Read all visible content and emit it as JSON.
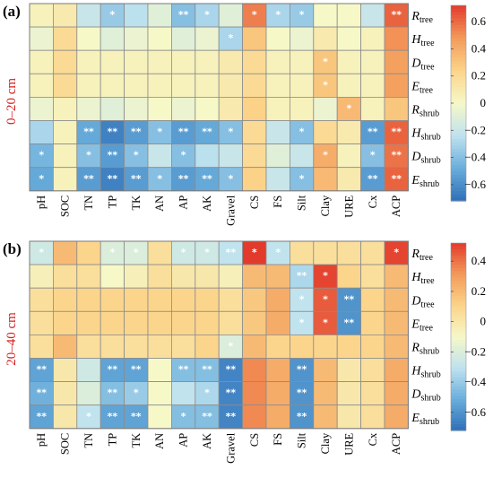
{
  "chart_data": [
    {
      "type": "heatmap",
      "panel": "(a)",
      "depth": "0–20 cm",
      "x_labels": [
        "pH",
        "SOC",
        "TN",
        "TP",
        "TK",
        "AN",
        "AP",
        "AK",
        "Gravel",
        "CS",
        "FS",
        "Silt",
        "Clay",
        "URE",
        "Cx",
        "ACP"
      ],
      "y_labels": [
        {
          "base": "R",
          "sub": "tree"
        },
        {
          "base": "H",
          "sub": "tree"
        },
        {
          "base": "D",
          "sub": "tree"
        },
        {
          "base": "E",
          "sub": "tree"
        },
        {
          "base": "R",
          "sub": "shrub"
        },
        {
          "base": "H",
          "sub": "shrub"
        },
        {
          "base": "D",
          "sub": "shrub"
        },
        {
          "base": "E",
          "sub": "shrub"
        }
      ],
      "values": [
        [
          0.05,
          0.1,
          -0.2,
          -0.35,
          -0.25,
          -0.1,
          -0.4,
          -0.3,
          -0.1,
          0.55,
          -0.3,
          -0.35,
          0.0,
          0.0,
          -0.2,
          0.62
        ],
        [
          -0.05,
          0.2,
          0.0,
          -0.1,
          -0.05,
          0.0,
          -0.1,
          -0.05,
          -0.3,
          0.3,
          0.0,
          -0.05,
          0.1,
          0.0,
          0.05,
          0.5
        ],
        [
          0.05,
          0.2,
          0.05,
          0.05,
          0.05,
          0.05,
          0.05,
          0.05,
          0.1,
          0.2,
          0.05,
          0.05,
          0.3,
          0.05,
          0.05,
          0.45
        ],
        [
          0.05,
          0.2,
          0.05,
          0.05,
          0.05,
          0.05,
          0.05,
          0.05,
          0.1,
          0.2,
          0.05,
          0.05,
          0.3,
          0.05,
          0.05,
          0.45
        ],
        [
          -0.05,
          0.05,
          -0.05,
          -0.1,
          -0.05,
          0.0,
          -0.05,
          0.0,
          0.1,
          0.25,
          0.05,
          0.05,
          -0.05,
          0.35,
          0.05,
          0.3
        ],
        [
          -0.3,
          0.05,
          -0.5,
          -0.65,
          -0.55,
          -0.4,
          -0.55,
          -0.5,
          -0.4,
          0.2,
          -0.2,
          -0.4,
          0.2,
          0.1,
          -0.55,
          0.62
        ],
        [
          -0.45,
          0.05,
          -0.4,
          -0.55,
          -0.4,
          -0.2,
          -0.4,
          -0.25,
          -0.2,
          0.2,
          -0.1,
          -0.2,
          0.4,
          0.05,
          -0.4,
          0.58
        ],
        [
          -0.5,
          0.05,
          -0.55,
          -0.65,
          -0.55,
          -0.4,
          -0.55,
          -0.5,
          -0.4,
          0.25,
          -0.2,
          -0.4,
          0.35,
          0.1,
          -0.55,
          0.62
        ]
      ],
      "significance": [
        [
          "",
          "",
          "",
          "*",
          "",
          "",
          "**",
          "*",
          "",
          "*",
          "*",
          "*",
          "",
          "",
          "",
          "**"
        ],
        [
          "",
          "",
          "",
          "",
          "",
          "",
          "",
          "",
          "*",
          "",
          "",
          "",
          "",
          "",
          "",
          ""
        ],
        [
          "",
          "",
          "",
          "",
          "",
          "",
          "",
          "",
          "",
          "",
          "",
          "",
          "*",
          "",
          "",
          ""
        ],
        [
          "",
          "",
          "",
          "",
          "",
          "",
          "",
          "",
          "",
          "",
          "",
          "",
          "*",
          "",
          "",
          ""
        ],
        [
          "",
          "",
          "",
          "",
          "",
          "",
          "",
          "",
          "",
          "",
          "",
          "",
          "",
          "*",
          "",
          ""
        ],
        [
          "",
          "",
          "**",
          "**",
          "**",
          "*",
          "**",
          "**",
          "*",
          "",
          "",
          "*",
          "",
          "",
          "**",
          "**"
        ],
        [
          "*",
          "",
          "*",
          "**",
          "*",
          "",
          "*",
          "",
          "",
          "",
          "",
          "",
          "*",
          "",
          "*",
          "**"
        ],
        [
          "*",
          "",
          "**",
          "**",
          "**",
          "*",
          "**",
          "**",
          "*",
          "",
          "",
          "*",
          "",
          "",
          "**",
          "**"
        ]
      ],
      "colorbar_ticks": [
        "0.6",
        "0.4",
        "0.2",
        "0",
        "−0.2",
        "−0.4",
        "−0.6"
      ],
      "color_range": [
        -0.72,
        0.72
      ]
    },
    {
      "type": "heatmap",
      "panel": "(b)",
      "depth": "20–40 cm",
      "x_labels": [
        "pH",
        "SOC",
        "TN",
        "TP",
        "TK",
        "AN",
        "AP",
        "AK",
        "Gravel",
        "CS",
        "FS",
        "Silt",
        "Clay",
        "URE",
        "Cx",
        "ACP"
      ],
      "y_labels": [
        {
          "base": "R",
          "sub": "tree"
        },
        {
          "base": "H",
          "sub": "tree"
        },
        {
          "base": "D",
          "sub": "tree"
        },
        {
          "base": "E",
          "sub": "tree"
        },
        {
          "base": "R",
          "sub": "shrub"
        },
        {
          "base": "H",
          "sub": "shrub"
        },
        {
          "base": "D",
          "sub": "shrub"
        },
        {
          "base": "E",
          "sub": "shrub"
        }
      ],
      "values": [
        [
          -0.25,
          0.2,
          0.1,
          -0.2,
          -0.2,
          0.05,
          -0.25,
          -0.25,
          -0.3,
          0.55,
          -0.3,
          0.05,
          0.05,
          0.05,
          0.05,
          0.5
        ],
        [
          -0.05,
          0.05,
          0.05,
          -0.1,
          -0.05,
          0.05,
          0.0,
          0.0,
          -0.05,
          0.2,
          0.2,
          -0.35,
          0.5,
          0.1,
          0.05,
          0.2
        ],
        [
          0.05,
          0.1,
          0.1,
          0.1,
          0.1,
          0.1,
          0.1,
          0.1,
          0.05,
          0.15,
          0.25,
          -0.3,
          0.45,
          -0.6,
          0.1,
          0.2
        ],
        [
          0.05,
          0.1,
          0.1,
          0.1,
          0.1,
          0.1,
          0.1,
          0.1,
          0.05,
          0.15,
          0.25,
          -0.3,
          0.45,
          -0.6,
          0.1,
          0.2
        ],
        [
          0.05,
          0.2,
          0.05,
          0.05,
          0.05,
          0.05,
          0.05,
          0.1,
          -0.2,
          0.2,
          0.1,
          0.1,
          0.1,
          0.1,
          0.1,
          0.2
        ],
        [
          -0.55,
          0.0,
          -0.25,
          -0.55,
          -0.55,
          -0.1,
          -0.45,
          -0.45,
          -0.65,
          0.35,
          0.25,
          -0.6,
          0.2,
          0.0,
          0.05,
          0.25
        ],
        [
          -0.5,
          0.0,
          -0.2,
          -0.45,
          -0.4,
          -0.1,
          -0.3,
          -0.35,
          -0.65,
          0.35,
          0.25,
          -0.6,
          0.2,
          0.0,
          0.05,
          0.25
        ],
        [
          -0.55,
          0.0,
          -0.3,
          -0.55,
          -0.55,
          -0.1,
          -0.45,
          -0.45,
          -0.65,
          0.35,
          0.25,
          -0.6,
          0.2,
          0.0,
          0.05,
          0.25
        ]
      ],
      "significance": [
        [
          "*",
          "",
          "",
          "*",
          "*",
          "",
          "*",
          "*",
          "**",
          "*",
          "*",
          "",
          "",
          "",
          "",
          "*"
        ],
        [
          "",
          "",
          "",
          "",
          "",
          "",
          "",
          "",
          "",
          "",
          "",
          "**",
          "*",
          "",
          "",
          ""
        ],
        [
          "",
          "",
          "",
          "",
          "",
          "",
          "",
          "",
          "",
          "",
          "",
          "*",
          "*",
          "**",
          "",
          ""
        ],
        [
          "",
          "",
          "",
          "",
          "",
          "",
          "",
          "",
          "",
          "",
          "",
          "*",
          "*",
          "**",
          "",
          ""
        ],
        [
          "",
          "",
          "",
          "",
          "",
          "",
          "",
          "",
          "*",
          "",
          "",
          "",
          "",
          "",
          "",
          ""
        ],
        [
          "**",
          "",
          "",
          "**",
          "**",
          "",
          "**",
          "**",
          "**",
          "",
          "",
          "**",
          "",
          "",
          "",
          ""
        ],
        [
          "**",
          "",
          "",
          "**",
          "*",
          "",
          "",
          "*",
          "**",
          "",
          "",
          "**",
          "",
          "",
          "",
          ""
        ],
        [
          "**",
          "",
          "*",
          "**",
          "**",
          "",
          "*",
          "**",
          "**",
          "",
          "",
          "**",
          "",
          "",
          "",
          ""
        ]
      ],
      "colorbar_ticks": [
        "0.4",
        "0.2",
        "0",
        "−0.2",
        "−0.4",
        "−0.6"
      ],
      "colorbar_tick_values": [
        0.4,
        0.2,
        0,
        -0.2,
        -0.4,
        -0.6
      ],
      "color_range": [
        -0.72,
        0.52
      ]
    }
  ],
  "colorscale": [
    "#2f6fb8",
    "#6aaedb",
    "#bfe2ef",
    "#f6f8c8",
    "#fbd48a",
    "#f39a5a",
    "#e23b2c"
  ]
}
